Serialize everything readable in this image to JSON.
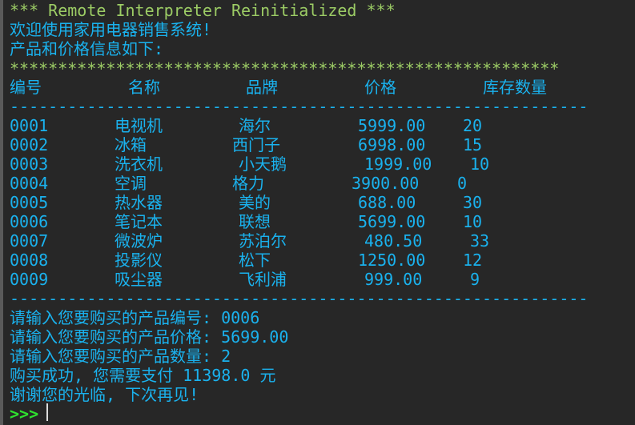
{
  "console": {
    "banner": "*** Remote Interpreter Reinitialized ***",
    "welcome": "欢迎使用家用电器销售系统!",
    "intro": "产品和价格信息如下:",
    "stars": "*********************************************************",
    "dashes": "------------------------------------------------------------",
    "headers": [
      "编号",
      "名称",
      "品牌",
      "价格",
      "库存数量"
    ],
    "rows": [
      [
        "0001",
        "电视机",
        "海尔",
        "5999.00",
        "20"
      ],
      [
        "0002",
        "冰箱",
        "西门子",
        "6998.00",
        "15"
      ],
      [
        "0003",
        "洗衣机",
        "小天鹅",
        "1999.00",
        "10"
      ],
      [
        "0004",
        "空调",
        "格力",
        "3900.00",
        "0"
      ],
      [
        "0005",
        "热水器",
        "美的",
        "688.00",
        "30"
      ],
      [
        "0006",
        "笔记本",
        "联想",
        "5699.00",
        "10"
      ],
      [
        "0007",
        "微波炉",
        "苏泊尔",
        "480.50",
        "33"
      ],
      [
        "0008",
        "投影仪",
        "松下",
        "1250.00",
        "12"
      ],
      [
        "0009",
        "吸尘器",
        "飞利浦",
        "999.00",
        "9"
      ]
    ],
    "input_id": "请输入您要购买的产品编号: 0006",
    "input_price": "请输入您要购买的产品价格: 5699.00",
    "input_qty": "请输入您要购买的产品数量: 2",
    "result": "购买成功, 您需要支付 11398.0 元",
    "thanks": "谢谢您的光临, 下次再见!",
    "prompt": ">>>"
  },
  "colors": {
    "banner": "#9ccc65",
    "output": "#1ab2ee",
    "prompt": "#2fe02f",
    "background": "#272727"
  }
}
